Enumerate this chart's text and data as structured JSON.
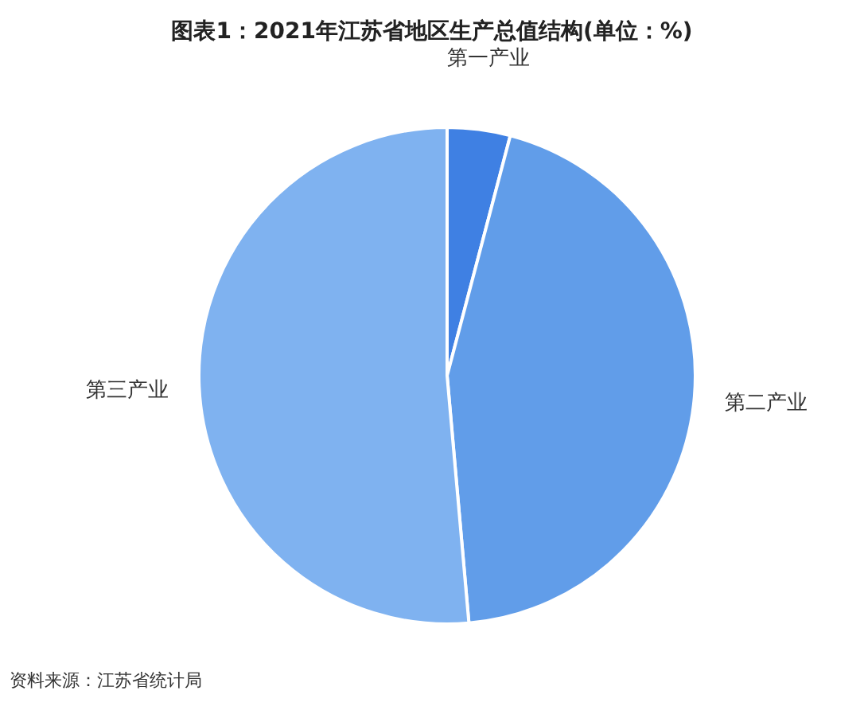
{
  "chart_data": {
    "type": "pie",
    "title": "图表1：2021年江苏省地区生产总值结构(单位：%)",
    "categories": [
      "第一产业",
      "第二产业",
      "第三产业"
    ],
    "values": [
      4.1,
      44.5,
      51.4
    ],
    "colors": [
      "#3f80e3",
      "#619de9",
      "#7fb2f0"
    ],
    "legend": false,
    "annotations": [
      "资料来源：江苏省统计局"
    ]
  }
}
